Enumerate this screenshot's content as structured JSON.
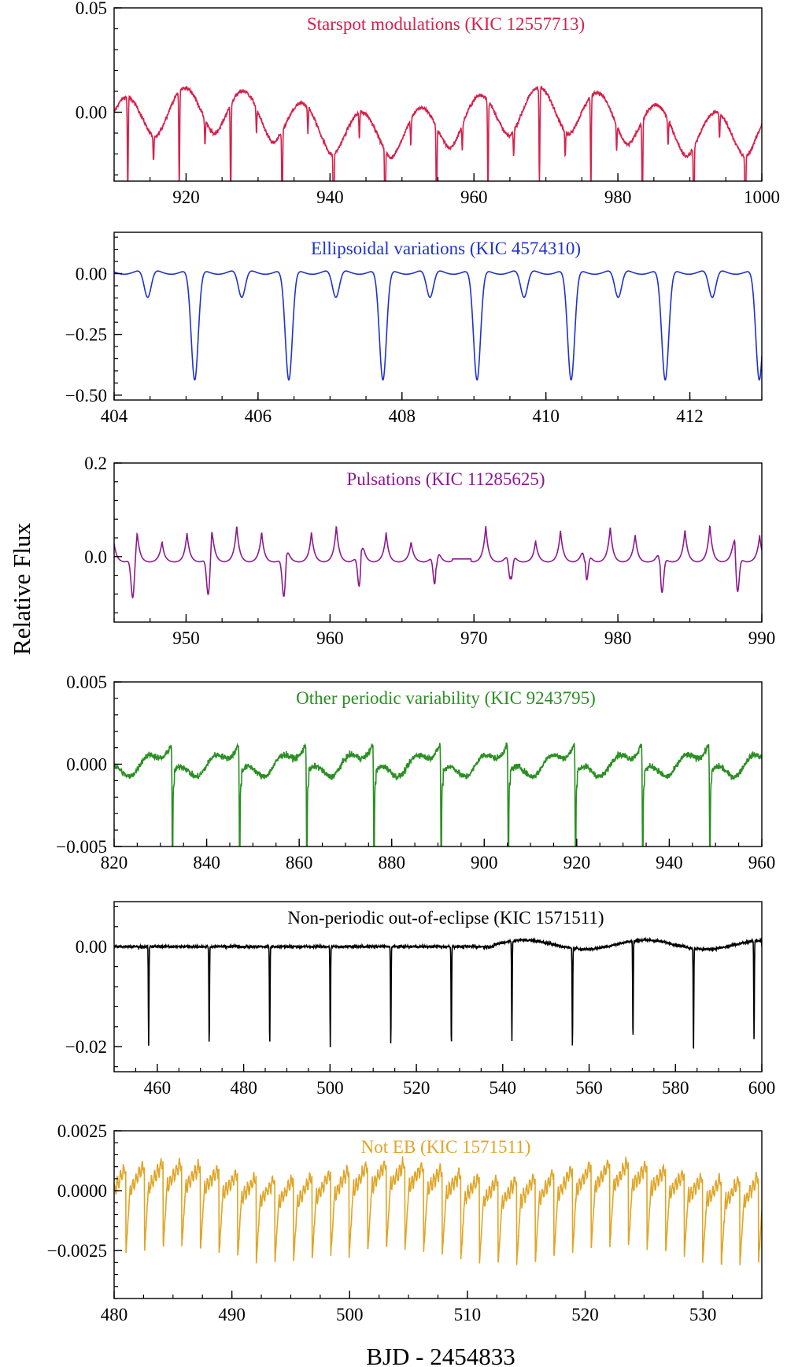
{
  "figure": {
    "ylabel": "Relative Flux",
    "xlabel": "BJD - 2454833"
  },
  "chart_data": [
    {
      "type": "line",
      "title": "Starspot modulations (KIC 12557713)",
      "color": "#d6204a",
      "xlim": [
        910,
        1000
      ],
      "ylim": [
        -0.033,
        0.05
      ],
      "xticks": [
        920,
        940,
        960,
        980,
        1000
      ],
      "xtick_labels": [
        "920",
        "940",
        "960",
        "980",
        "1000"
      ],
      "yticks": [
        0.0,
        0.05
      ],
      "ytick_labels": [
        "0.00",
        "0.05"
      ],
      "model": {
        "kind": "spot",
        "period": 8.2,
        "phase_ref": 911.6,
        "amp": 0.022,
        "offset": -0.004,
        "noise": 0.0009,
        "eclipse_period": 7.15,
        "eclipse_ref": 911.9,
        "eclipse_depth": 0.045,
        "eclipse_width": 0.06,
        "secondary_depth": 0.012
      }
    },
    {
      "type": "line",
      "title": "Ellipsoidal variations (KIC 4574310)",
      "color": "#1f33c9",
      "xlim": [
        404,
        413
      ],
      "ylim": [
        -0.52,
        0.17
      ],
      "xticks": [
        404,
        406,
        408,
        410,
        412
      ],
      "xtick_labels": [
        "404",
        "406",
        "408",
        "410",
        "412"
      ],
      "yticks": [
        0.0,
        -0.25,
        -0.5
      ],
      "ytick_labels": [
        "0.00",
        "−0.25",
        "−0.50"
      ],
      "model": {
        "kind": "ellipsoidal",
        "period": 1.3076,
        "primary_ref": 405.12,
        "primary_depth": 0.46,
        "secondary_depth": 0.12,
        "ellip_amp": 0.025,
        "width": 0.09,
        "noise": 0.0
      }
    },
    {
      "type": "line",
      "title": "Pulsations (KIC 11285625)",
      "color": "#8c1a8c",
      "xlim": [
        945,
        990
      ],
      "ylim": [
        -0.14,
        0.2
      ],
      "xticks": [
        950,
        960,
        970,
        980,
        990
      ],
      "xtick_labels": [
        "950",
        "960",
        "970",
        "980",
        "990"
      ],
      "yticks": [
        0.0,
        0.2
      ],
      "ytick_labels": [
        "0.0",
        "0.2"
      ],
      "model": {
        "kind": "pulsation",
        "peak_period": 1.73,
        "peak_ref": 946.6,
        "peak_amp": 0.07,
        "eclipse_period": 5.25,
        "eclipse_ref": 946.3,
        "eclipse_depth": 0.09,
        "gap": [
          968.5,
          969.8
        ],
        "noise": 0.0
      }
    },
    {
      "type": "line",
      "title": "Other periodic variability (KIC 9243795)",
      "color": "#2a8f22",
      "xlim": [
        820,
        960
      ],
      "ylim": [
        -0.005,
        0.005
      ],
      "xticks": [
        820,
        840,
        860,
        880,
        900,
        920,
        940,
        960
      ],
      "xtick_labels": [
        "820",
        "840",
        "860",
        "880",
        "900",
        "920",
        "940",
        "960"
      ],
      "yticks": [
        0.005,
        0.0,
        -0.005
      ],
      "ytick_labels": [
        "0.005",
        "0.000",
        "−0.005"
      ],
      "model": {
        "kind": "sawtooth",
        "period": 14.52,
        "eclipse_ref": 832.6,
        "eclipse_depth": 0.007,
        "eclipse_width": 0.08,
        "amp": 0.0016,
        "noise": 0.00018
      }
    },
    {
      "type": "line",
      "title": "Non-periodic out-of-eclipse (KIC 1571511)",
      "color": "#000000",
      "xlim": [
        450,
        600
      ],
      "ylim": [
        -0.025,
        0.009
      ],
      "xticks": [
        460,
        480,
        500,
        520,
        540,
        560,
        580,
        600
      ],
      "xtick_labels": [
        "460",
        "480",
        "500",
        "520",
        "540",
        "560",
        "580",
        "600"
      ],
      "yticks": [
        0.0,
        -0.02
      ],
      "ytick_labels": [
        "0.00",
        "−0.02"
      ],
      "model": {
        "kind": "flat_eclipse",
        "period": 14.02,
        "eclipse_ref": 458.0,
        "eclipse_depth": 0.02,
        "eclipse_width": 0.07,
        "noise": 0.00025
      }
    },
    {
      "type": "line",
      "title": "Not EB (KIC 1571511)",
      "color": "#e0a526",
      "xlim": [
        480,
        535
      ],
      "ylim": [
        -0.0045,
        0.0025
      ],
      "xticks": [
        480,
        490,
        500,
        510,
        520,
        530
      ],
      "xtick_labels": [
        "480",
        "490",
        "500",
        "510",
        "520",
        "530"
      ],
      "yticks": [
        0.0025,
        0.0,
        -0.0025
      ],
      "ytick_labels": [
        "0.0025",
        "0.0000",
        "−0.0025"
      ],
      "model": {
        "kind": "ntb",
        "period": 1.58,
        "ref": 481.0,
        "amp_lo": 0.0028,
        "amp_hi": 0.001,
        "noise": 0.00012
      }
    }
  ]
}
